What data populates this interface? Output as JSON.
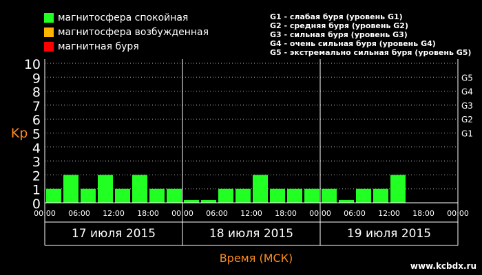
{
  "legend": [
    {
      "label": "магнитосфера спокойная",
      "color": "#22ff22"
    },
    {
      "label": "магнитосфера возбужденная",
      "color": "#ffb400"
    },
    {
      "label": "магнитная буря",
      "color": "#ff0000"
    }
  ],
  "storm_levels": [
    "G1 - слабая буря (уровень G1)",
    "G2 - средняя буря (уровень G2)",
    "G3 - сильная буря (уровень G3)",
    "G4 - очень сильная буря (уровень G4)",
    "G5 - экстремально сильная буря (уровень G5)"
  ],
  "site": "www.kcbdx.ru",
  "chart_data": {
    "type": "bar",
    "ylabel": "Kp",
    "xlabel": "Время (МСК)",
    "ylim": [
      0,
      10
    ],
    "y_ticks": [
      "0",
      "1",
      "2",
      "3",
      "4",
      "5",
      "6",
      "7",
      "8",
      "9",
      "10"
    ],
    "g_ticks": [
      {
        "label": "G1",
        "kp": 5
      },
      {
        "label": "G2",
        "kp": 6
      },
      {
        "label": "G3",
        "kp": 7
      },
      {
        "label": "G4",
        "kp": 8
      },
      {
        "label": "G5",
        "kp": 9
      }
    ],
    "days": [
      "17 июля 2015",
      "18 июля 2015",
      "19 июля 2015"
    ],
    "time_ticks": [
      "00:00",
      "06:00",
      "12:00",
      "18:00",
      "00:00",
      "06:00",
      "12:00",
      "18:00",
      "00:00",
      "06:00",
      "12:00",
      "18:00",
      "00:00"
    ],
    "intervals_per_day": 8,
    "values": [
      1,
      2,
      1,
      2,
      1,
      2,
      1,
      1,
      0.2,
      0.2,
      1,
      1,
      2,
      1,
      1,
      1,
      1,
      0.2,
      1,
      1,
      2,
      null,
      null,
      null
    ],
    "bar_color": "#22ff22",
    "grid": true
  }
}
